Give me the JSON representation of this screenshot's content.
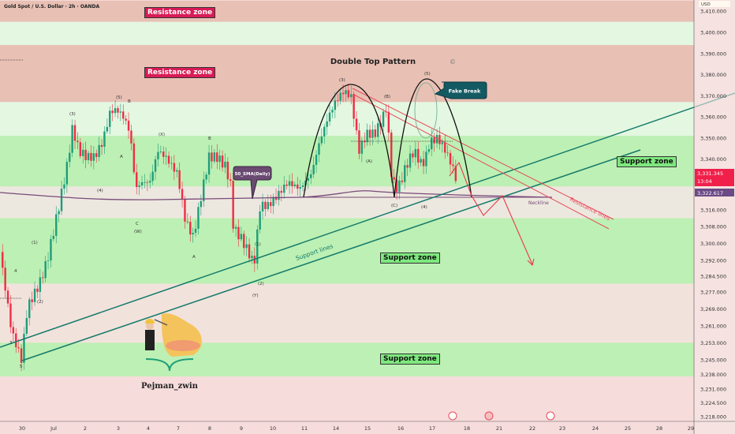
{
  "header": {
    "symbol_title": "Gold Spot / U.S. Dollar · 2h · OANDA",
    "currency": "USD"
  },
  "colors": {
    "resistance": "#e8c0b4",
    "support": "#bdf0b4",
    "neutral_green": "#e3f7e1",
    "beige": "#ece8df",
    "pink": "#f2e2dc",
    "bull": "#1e9e78",
    "bear": "#ef2d45",
    "trendline": "#137a6a",
    "resistance_line": "#e84a5a",
    "sma": "#7a4a7a"
  },
  "labels": {
    "resistance_zone_1": "Resistance zone",
    "resistance_zone_2": "Resistance zone",
    "support_zone_1": "Support zone",
    "support_zone_2": "Support zone",
    "support_zone_3": "Support zone",
    "pattern_title": "Double Top Pattern",
    "fake_break": "Fake Break",
    "sma": "50_SMA(Daily)",
    "neckline": "Neckline",
    "resistance_lines": "Resistance lines",
    "support_lines": "Support lines",
    "author": "Pejman_zwin"
  },
  "price_badges": {
    "current_price": "3,331.345",
    "countdown": "13:04",
    "sma_price": "3,322.617"
  },
  "wave_labels": [
    "(3)",
    "(5)",
    "(4)",
    "(1)",
    "(2)",
    "A",
    "B",
    "C",
    "(W)",
    "(X)",
    "(Y)",
    "4",
    "5",
    "3",
    "(B)",
    "(A)",
    "(C)"
  ],
  "chart_data": {
    "type": "candlestick",
    "title": "Gold Spot / U.S. Dollar · 2h · OANDA",
    "ylabel": "USD",
    "ylim": [
      3214,
      3415
    ],
    "y_ticks": [
      "3,410.000",
      "3,400.000",
      "3,390.000",
      "3,380.000",
      "3,370.000",
      "3,360.000",
      "3,350.000",
      "3,340.000",
      "3,316.000",
      "3,308.000",
      "3,300.000",
      "3,292.000",
      "3,284.500",
      "3,277.000",
      "3,269.000",
      "3,261.000",
      "3,253.000",
      "3,245.000",
      "3,238.000",
      "3,231.000",
      "3,224.500",
      "3,218.000"
    ],
    "y_tick_values": [
      3410,
      3400,
      3390,
      3380,
      3370,
      3360,
      3350,
      3340,
      3316,
      3308,
      3300,
      3292,
      3284.5,
      3277,
      3269,
      3261,
      3253,
      3245,
      3238,
      3231,
      3224.5,
      3218
    ],
    "x_ticks": [
      "30",
      "Jul",
      "2",
      "3",
      "4",
      "7",
      "8",
      "9",
      "10",
      "11",
      "14",
      "15",
      "16",
      "17",
      "18",
      "21",
      "22",
      "23",
      "24",
      "25",
      "28",
      "29"
    ],
    "zones": [
      {
        "kind": "resistance",
        "from": 3405,
        "to": 3415
      },
      {
        "kind": "neutral_green",
        "from": 3394,
        "to": 3405
      },
      {
        "kind": "resistance",
        "from": 3367,
        "to": 3394
      },
      {
        "kind": "neutral_green",
        "from": 3351,
        "to": 3367
      },
      {
        "kind": "support",
        "from": 3327,
        "to": 3351
      },
      {
        "kind": "beige",
        "from": 3312,
        "to": 3327
      },
      {
        "kind": "support",
        "from": 3281,
        "to": 3312
      },
      {
        "kind": "pink",
        "from": 3253,
        "to": 3281
      },
      {
        "kind": "support",
        "from": 3237,
        "to": 3253
      },
      {
        "kind": "pink_light",
        "from": 3214,
        "to": 3237
      }
    ],
    "price_path": [
      [
        -0.69,
        3296
      ],
      [
        -0.32,
        3258
      ],
      [
        -0.02,
        3245
      ],
      [
        0.17,
        3270
      ],
      [
        0.54,
        3281
      ],
      [
        0.78,
        3292
      ],
      [
        1.15,
        3318
      ],
      [
        1.4,
        3337
      ],
      [
        1.57,
        3355
      ],
      [
        1.76,
        3344
      ],
      [
        2.01,
        3341
      ],
      [
        2.25,
        3341
      ],
      [
        2.5,
        3348
      ],
      [
        2.75,
        3363
      ],
      [
        2.99,
        3363
      ],
      [
        3.19,
        3359
      ],
      [
        3.36,
        3352
      ],
      [
        3.53,
        3326
      ],
      [
        3.73,
        3329
      ],
      [
        3.97,
        3329
      ],
      [
        4.22,
        3344
      ],
      [
        4.46,
        3341
      ],
      [
        4.83,
        3333
      ],
      [
        5.07,
        3311
      ],
      [
        5.32,
        3303
      ],
      [
        5.56,
        3322
      ],
      [
        5.81,
        3341
      ],
      [
        6.05,
        3341
      ],
      [
        6.3,
        3337
      ],
      [
        6.47,
        3329
      ],
      [
        6.57,
        3307
      ],
      [
        6.79,
        3303
      ],
      [
        7.03,
        3296
      ],
      [
        7.21,
        3290
      ],
      [
        7.4,
        3318
      ],
      [
        7.65,
        3318
      ],
      [
        7.89,
        3322
      ],
      [
        8.26,
        3329
      ],
      [
        8.63,
        3326
      ],
      [
        8.99,
        3333
      ],
      [
        9.24,
        3348
      ],
      [
        9.49,
        3359
      ],
      [
        9.73,
        3367
      ],
      [
        9.98,
        3372
      ],
      [
        10.22,
        3370
      ],
      [
        10.47,
        3344
      ],
      [
        10.71,
        3352
      ],
      [
        10.96,
        3352
      ],
      [
        11.2,
        3359
      ],
      [
        11.32,
        3365
      ],
      [
        11.5,
        3329
      ],
      [
        11.69,
        3326
      ],
      [
        11.94,
        3337
      ],
      [
        12.18,
        3344
      ],
      [
        12.43,
        3337
      ],
      [
        12.55,
        3341
      ],
      [
        12.67,
        3348
      ],
      [
        12.92,
        3350
      ],
      [
        13.16,
        3344
      ],
      [
        13.41,
        3335
      ],
      [
        13.53,
        3327
      ]
    ],
    "last_price": 3331.345,
    "sma_50_daily": 3322.617
  }
}
